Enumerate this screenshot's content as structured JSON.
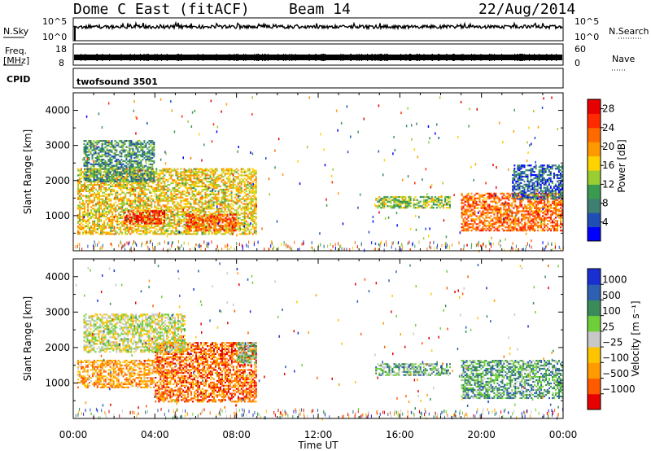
{
  "header": {
    "station": "Dome C East (fitACF)",
    "beam": "Beam 14",
    "date": "22/Aug/2014"
  },
  "strips": {
    "nsky_label": "N.Sky",
    "nsky_ticks": [
      "10^5",
      "10^0"
    ],
    "nsearch_label": "N.Search",
    "nsearch_ticks": [
      "10^5",
      "10^0"
    ],
    "freq_label": "Freq.",
    "freq_unit": "[MHz]",
    "freq_ticks": [
      "18",
      "8"
    ],
    "nave_label": "Nave",
    "nave_ticks": [
      "60",
      "0"
    ],
    "cpid_label": "CPID",
    "cpid_value": "twofsound 3501"
  },
  "colors": {
    "power": [
      "#0000ff",
      "#1f4fb4",
      "#3e7f72",
      "#3a9a50",
      "#9acd32",
      "#ffd200",
      "#ff9900",
      "#ff6a00",
      "#ff2a00",
      "#e60000"
    ],
    "velocity": [
      "#e60000",
      "#ff5a00",
      "#ff9a00",
      "#ffc400",
      "#c8c8c8",
      "#6fcf3a",
      "#3a8a5a",
      "#2e5fb0",
      "#1a2fd0"
    ]
  },
  "chart_data": [
    {
      "type": "heatmap",
      "panel": "power",
      "ylabel": "Slant Range [km]",
      "yticks": [
        "1000",
        "2000",
        "3000",
        "4000"
      ],
      "ylim": [
        0,
        4500
      ],
      "xlim": [
        0,
        24
      ],
      "xticks": [
        "00:00",
        "04:00",
        "08:00",
        "12:00",
        "16:00",
        "20:00",
        "00:00"
      ],
      "colorbar_label": "Power [dB]",
      "colorbar_ticks": [
        "4",
        "8",
        "12",
        "16",
        "20",
        "24",
        "28"
      ],
      "colorbar_range": [
        0,
        30
      ],
      "echo_regions": [
        {
          "t0": 0.2,
          "t1": 9.0,
          "r0": 500,
          "r1": 2400,
          "level": 0.55
        },
        {
          "t0": 0.5,
          "t1": 4.0,
          "r0": 2000,
          "r1": 3200,
          "level": 0.3
        },
        {
          "t0": 2.5,
          "t1": 4.5,
          "r0": 800,
          "r1": 1200,
          "level": 0.9
        },
        {
          "t0": 5.5,
          "t1": 8.0,
          "r0": 600,
          "r1": 1100,
          "level": 0.8
        },
        {
          "t0": 14.8,
          "t1": 18.5,
          "r0": 1250,
          "r1": 1600,
          "level": 0.45
        },
        {
          "t0": 19.0,
          "t1": 24.0,
          "r0": 600,
          "r1": 1700,
          "level": 0.75
        },
        {
          "t0": 21.5,
          "t1": 24.0,
          "r0": 1500,
          "r1": 2500,
          "level": 0.2
        }
      ]
    },
    {
      "type": "heatmap",
      "panel": "velocity",
      "ylabel": "Slant Range [km]",
      "yticks": [
        "1000",
        "2000",
        "3000",
        "4000"
      ],
      "ylim": [
        0,
        4500
      ],
      "xlim": [
        0,
        24
      ],
      "xticks": [
        "00:00",
        "04:00",
        "08:00",
        "12:00",
        "16:00",
        "20:00",
        "00:00"
      ],
      "xlabel": "Time UT",
      "colorbar_label": "Velocity [m s⁻¹]",
      "colorbar_ticks": [
        "1000",
        "500",
        "100",
        "25",
        "−25",
        "−100",
        "−500",
        "−1000"
      ],
      "echo_regions": [
        {
          "t0": 0.2,
          "t1": 4.0,
          "r0": 900,
          "r1": 1700,
          "level": 0.3
        },
        {
          "t0": 4.0,
          "t1": 9.0,
          "r0": 500,
          "r1": 2200,
          "level": 0.2
        },
        {
          "t0": 0.5,
          "t1": 5.5,
          "r0": 1900,
          "r1": 3000,
          "level": 0.5
        },
        {
          "t0": 8.0,
          "t1": 9.0,
          "r0": 1600,
          "r1": 2200,
          "level": 0.62
        },
        {
          "t0": 14.8,
          "t1": 18.5,
          "r0": 1250,
          "r1": 1600,
          "level": 0.65
        },
        {
          "t0": 19.0,
          "t1": 24.0,
          "r0": 600,
          "r1": 1700,
          "level": 0.68
        }
      ]
    }
  ]
}
